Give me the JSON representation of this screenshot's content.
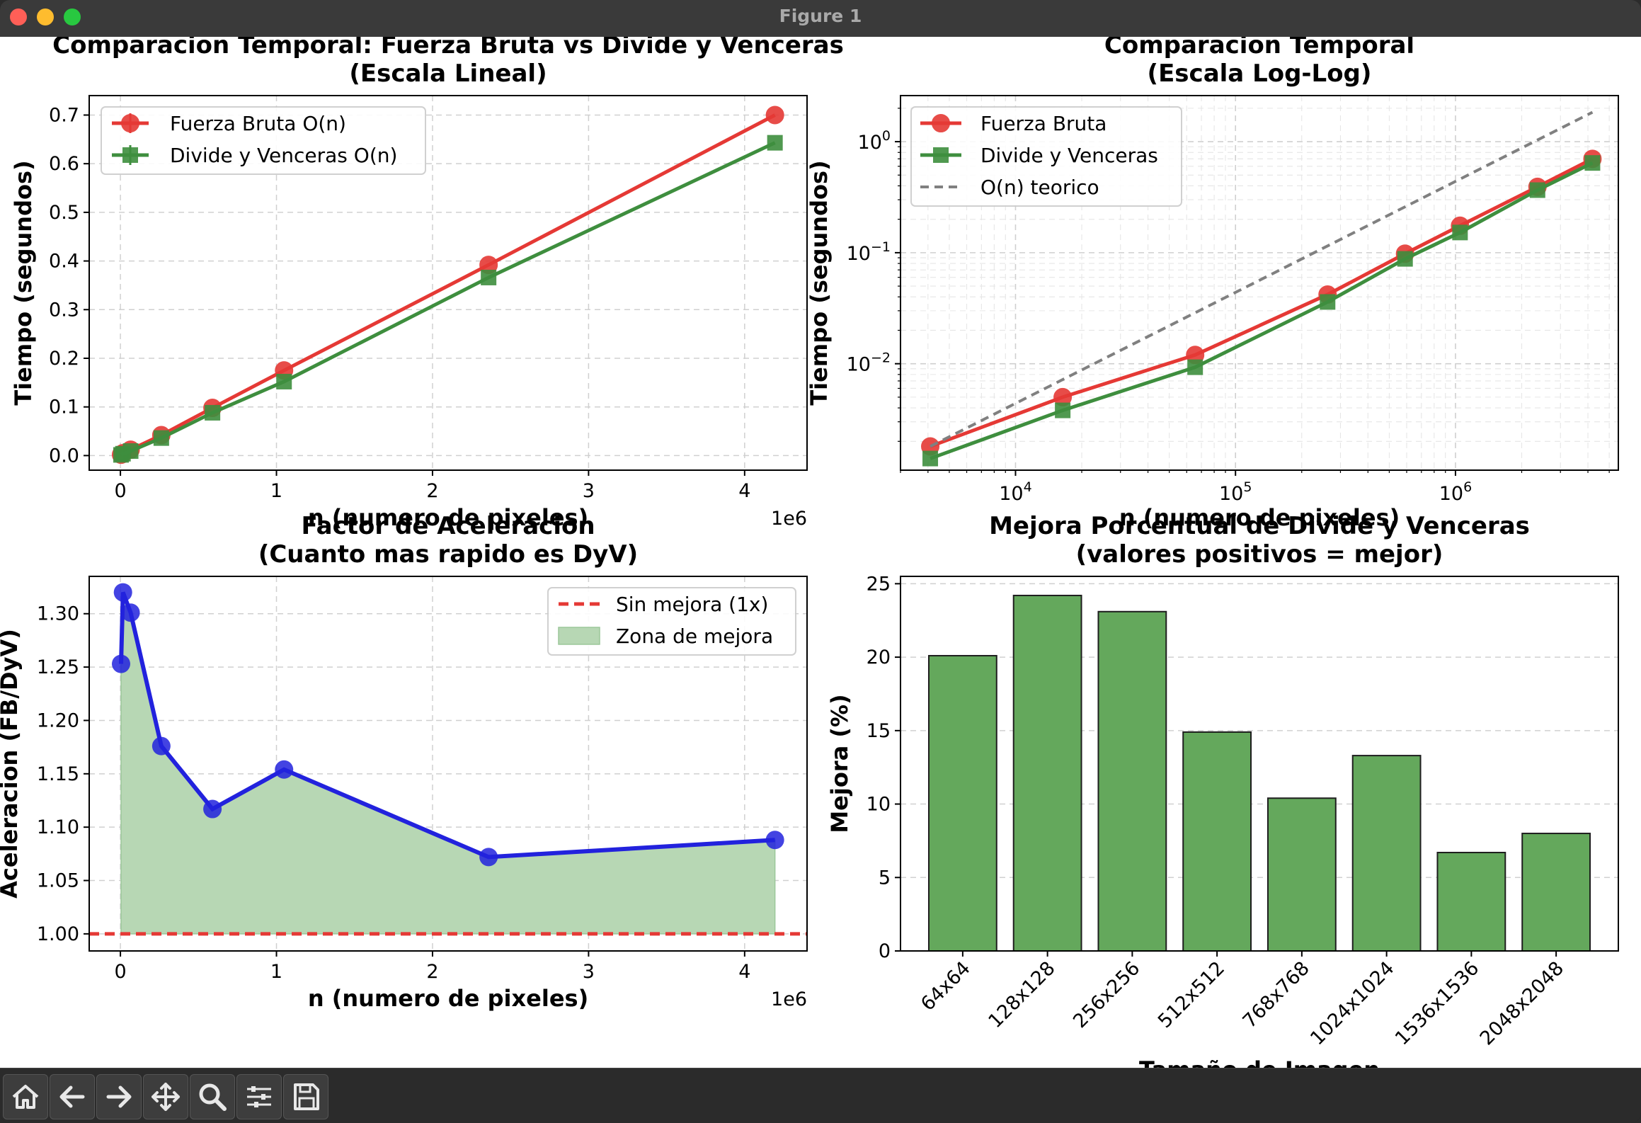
{
  "window": {
    "title": "Figure 1"
  },
  "toolbar": {
    "buttons": [
      {
        "name": "home-button",
        "icon": "home-icon"
      },
      {
        "name": "back-button",
        "icon": "arrow-left-icon"
      },
      {
        "name": "forward-button",
        "icon": "arrow-right-icon"
      },
      {
        "name": "pan-button",
        "icon": "move-icon"
      },
      {
        "name": "zoom-button",
        "icon": "zoom-icon"
      },
      {
        "name": "configure-subplots-button",
        "icon": "sliders-icon"
      },
      {
        "name": "save-button",
        "icon": "save-icon"
      }
    ]
  },
  "colors": {
    "red": "#e53935",
    "green": "#3e8e3e",
    "blue": "#2222dd",
    "fill_green": "#b7d7b4",
    "bar_green": "#64a85c",
    "dash_gray": "#808080"
  },
  "chart_data": [
    {
      "id": "linear",
      "type": "line",
      "title": "Comparacion Temporal: Fuerza Bruta vs Divide y Venceras\n(Escala Lineal)",
      "xlabel": "n (numero de pixeles)",
      "ylabel": "Tiempo (segundos)",
      "x_offset_label": "1e6",
      "xlim": [
        -0.2,
        4.4
      ],
      "ylim": [
        -0.03,
        0.74
      ],
      "xticks": [
        0,
        1,
        2,
        3,
        4
      ],
      "yticks": [
        0.0,
        0.1,
        0.2,
        0.3,
        0.4,
        0.5,
        0.6,
        0.7
      ],
      "ytick_labels": [
        "0.0",
        "0.1",
        "0.2",
        "0.3",
        "0.4",
        "0.5",
        "0.6",
        "0.7"
      ],
      "grid": true,
      "legend": "upper-left",
      "x": [
        0.004096,
        0.016384,
        0.065536,
        0.262144,
        0.589824,
        1.048576,
        2.359296,
        4.194304
      ],
      "series": [
        {
          "name": "Fuerza Bruta O(n)",
          "color": "#e53935",
          "marker": "circle",
          "values": [
            0.0018,
            0.005,
            0.012,
            0.042,
            0.098,
            0.175,
            0.392,
            0.7
          ]
        },
        {
          "name": "Divide y Venceras O(n)",
          "color": "#3e8e3e",
          "marker": "square",
          "values": [
            0.0014,
            0.0038,
            0.0093,
            0.036,
            0.088,
            0.152,
            0.366,
            0.643
          ]
        }
      ]
    },
    {
      "id": "loglog",
      "type": "line",
      "title": "Comparacion Temporal\n(Escala Log-Log)",
      "xlabel": "n (numero de pixeles)",
      "ylabel": "Tiempo (segundos)",
      "xscale": "log",
      "yscale": "log",
      "xlim": [
        3000,
        5500000
      ],
      "ylim": [
        0.0011,
        2.6
      ],
      "xticks": [
        10000,
        100000,
        1000000
      ],
      "xtick_labels": [
        "10^4",
        "10^5",
        "10^6"
      ],
      "yticks": [
        0.01,
        0.1,
        1
      ],
      "ytick_labels": [
        "10^-2",
        "10^-1",
        "10^0"
      ],
      "grid": true,
      "legend": "upper-left",
      "x": [
        4096,
        16384,
        65536,
        262144,
        589824,
        1048576,
        2359296,
        4194304
      ],
      "series": [
        {
          "name": "Fuerza Bruta",
          "color": "#e53935",
          "marker": "circle",
          "values": [
            0.0018,
            0.005,
            0.012,
            0.042,
            0.098,
            0.175,
            0.392,
            0.7
          ]
        },
        {
          "name": "Divide y Venceras",
          "color": "#3e8e3e",
          "marker": "square",
          "values": [
            0.0014,
            0.0038,
            0.0093,
            0.036,
            0.088,
            0.152,
            0.366,
            0.643
          ]
        },
        {
          "name": "O(n) teorico",
          "color": "#808080",
          "dashed": true,
          "x": [
            4096,
            4194304
          ],
          "values": [
            0.0018,
            1.84
          ]
        }
      ]
    },
    {
      "id": "speedup",
      "type": "area",
      "title": "Factor de Aceleracion\n(Cuanto mas rapido es DyV)",
      "xlabel": "n (numero de pixeles)",
      "ylabel": "Aceleracion (FB/DyV)",
      "x_offset_label": "1e6",
      "xlim": [
        -0.2,
        4.4
      ],
      "ylim": [
        0.984,
        1.335
      ],
      "xticks": [
        0,
        1,
        2,
        3,
        4
      ],
      "yticks": [
        1.0,
        1.05,
        1.1,
        1.15,
        1.2,
        1.25,
        1.3
      ],
      "ytick_labels": [
        "1.00",
        "1.05",
        "1.10",
        "1.15",
        "1.20",
        "1.25",
        "1.30"
      ],
      "grid": true,
      "legend": "upper-right",
      "x": [
        0.004096,
        0.016384,
        0.065536,
        0.262144,
        0.589824,
        1.048576,
        2.359296,
        4.194304
      ],
      "values": [
        1.253,
        1.32,
        1.301,
        1.176,
        1.117,
        1.154,
        1.072,
        1.088
      ],
      "baseline": {
        "name": "Sin mejora (1x)",
        "value": 1.0,
        "color": "#e53935"
      },
      "fill_name": "Zona de mejora",
      "line_color": "#2222dd"
    },
    {
      "id": "improvement",
      "type": "bar",
      "title": "Mejora Porcentual de Divide y Venceras\n(valores positivos = mejor)",
      "xlabel": "Tamaño de Imagen",
      "ylabel": "Mejora (%)",
      "ylim": [
        0,
        25.5
      ],
      "yticks": [
        0,
        5,
        10,
        15,
        20,
        25
      ],
      "ytick_labels": [
        "0",
        "5",
        "10",
        "15",
        "20",
        "25"
      ],
      "grid": true,
      "categories": [
        "64x64",
        "128x128",
        "256x256",
        "512x512",
        "768x768",
        "1024x1024",
        "1536x1536",
        "2048x2048"
      ],
      "values": [
        20.1,
        24.2,
        23.1,
        14.9,
        10.4,
        13.3,
        6.7,
        8.0
      ],
      "color": "#64a85c"
    }
  ]
}
